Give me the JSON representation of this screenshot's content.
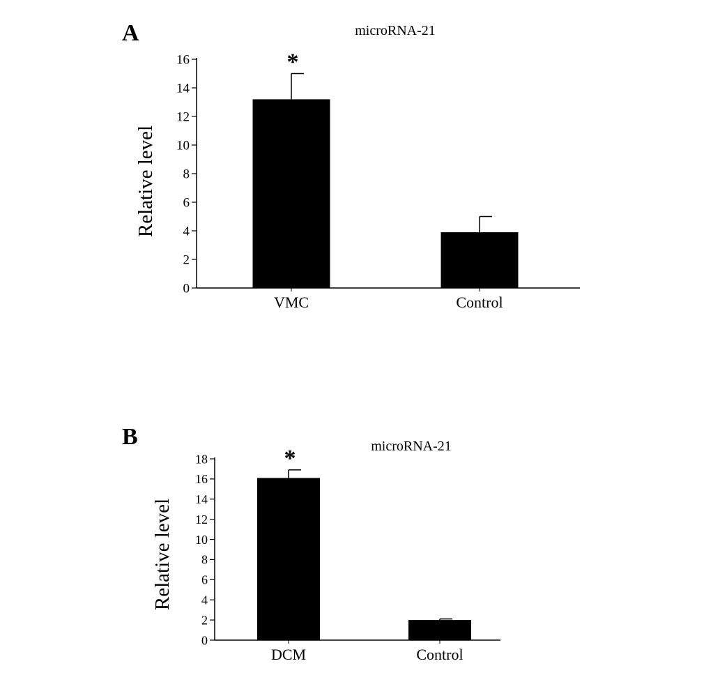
{
  "chart_data": [
    {
      "panel": "A",
      "type": "bar",
      "title": "microRNA-21",
      "ylabel": "Relative level",
      "xlabel": "",
      "categories": [
        "VMC",
        "Control"
      ],
      "values": [
        13.2,
        3.9
      ],
      "errors": [
        1.8,
        1.1
      ],
      "annotations": [
        "*",
        ""
      ],
      "ylim": [
        0,
        16
      ],
      "yticks": [
        0,
        2,
        4,
        6,
        8,
        10,
        12,
        14,
        16
      ],
      "grid": false,
      "bar_color": "#000000"
    },
    {
      "panel": "B",
      "type": "bar",
      "title": "microRNA-21",
      "ylabel": "Relative level",
      "xlabel": "",
      "categories": [
        "DCM",
        "Control"
      ],
      "values": [
        16.1,
        2.0
      ],
      "errors": [
        0.8,
        0.1
      ],
      "annotations": [
        "*",
        ""
      ],
      "ylim": [
        0,
        18
      ],
      "yticks": [
        0,
        2,
        4,
        6,
        8,
        10,
        12,
        14,
        16,
        18
      ],
      "grid": false,
      "bar_color": "#000000"
    }
  ]
}
